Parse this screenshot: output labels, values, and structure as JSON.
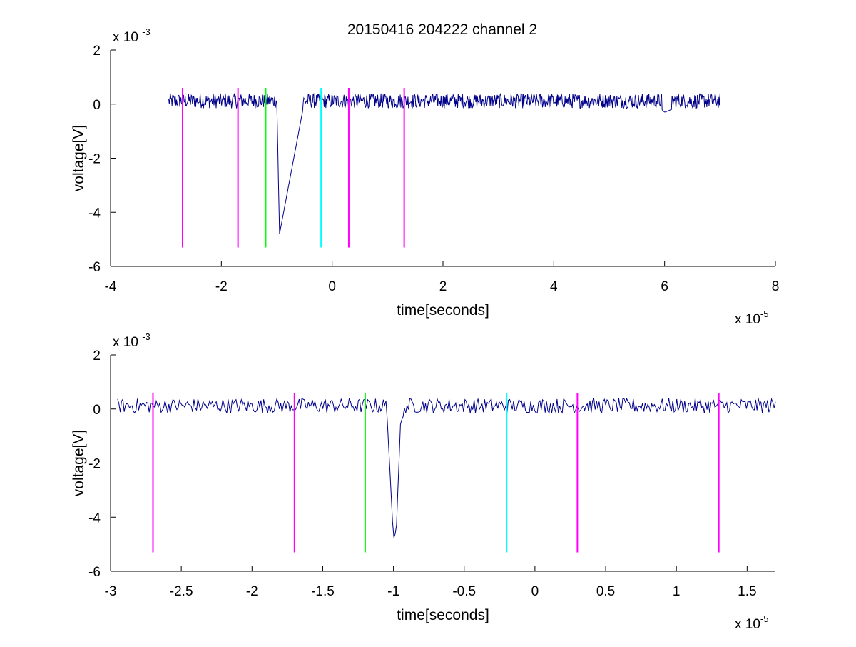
{
  "figure": {
    "title": "20150416 204222 channel 2"
  },
  "colors": {
    "signal": "#00008b",
    "magenta": "#ff00ff",
    "green": "#00ff00",
    "cyan": "#00ffff",
    "axes": "#000000"
  },
  "chart_data": [
    {
      "type": "line",
      "title": "20150416 204222 channel 2",
      "xlabel": "time[seconds]",
      "ylabel": "voltage[V]",
      "x_exponent_label": "x 10",
      "x_exponent": "-5",
      "y_exponent_label": "x 10",
      "y_exponent": "-3",
      "xlim": [
        -4,
        8
      ],
      "ylim": [
        -6,
        2
      ],
      "xticks": [
        -4,
        -2,
        0,
        2,
        4,
        6,
        8
      ],
      "xtick_labels": [
        "-4",
        "-2",
        "0",
        "2",
        "4",
        "6",
        "8"
      ],
      "yticks": [
        -6,
        -4,
        -2,
        0,
        2
      ],
      "ytick_labels": [
        "-6",
        "-4",
        "-2",
        "0",
        "2"
      ],
      "grid": false,
      "series": [
        {
          "x": [
            -2.95,
            -2.5,
            -2.0,
            -1.5,
            -1.0,
            -0.95,
            -0.5,
            0,
            1,
            2,
            3,
            4,
            5,
            5.8,
            6.0,
            6.5,
            7.0
          ],
          "y": [
            0.2,
            0.1,
            0.0,
            0.2,
            0.2,
            -4.8,
            0.1,
            0.2,
            0.1,
            0.2,
            0.1,
            0.1,
            0.2,
            0.1,
            -0.3,
            0.1,
            0.2
          ]
        }
      ],
      "vlines": [
        {
          "x": -2.7,
          "color": "magenta",
          "y0": -5.3,
          "y1": 0.6
        },
        {
          "x": -1.7,
          "color": "magenta",
          "y0": -5.3,
          "y1": 0.6
        },
        {
          "x": -1.2,
          "color": "green",
          "y0": -5.3,
          "y1": 0.6
        },
        {
          "x": -0.2,
          "color": "cyan",
          "y0": -5.3,
          "y1": 0.6
        },
        {
          "x": 0.3,
          "color": "magenta",
          "y0": -5.3,
          "y1": 0.6
        },
        {
          "x": 1.3,
          "color": "magenta",
          "y0": -5.3,
          "y1": 0.6
        }
      ]
    },
    {
      "type": "line",
      "title": "",
      "xlabel": "time[seconds]",
      "ylabel": "voltage[V]",
      "x_exponent_label": "x 10",
      "x_exponent": "-5",
      "y_exponent_label": "x 10",
      "y_exponent": "-3",
      "xlim": [
        -3,
        1.7
      ],
      "ylim": [
        -6,
        2
      ],
      "xticks": [
        -3,
        -2.5,
        -2,
        -1.5,
        -1,
        -0.5,
        0,
        0.5,
        1,
        1.5
      ],
      "xtick_labels": [
        "-3",
        "-2.5",
        "-2",
        "-1.5",
        "-1",
        "-0.5",
        "0",
        "0.5",
        "1",
        "1.5"
      ],
      "yticks": [
        -6,
        -4,
        -2,
        0,
        2
      ],
      "ytick_labels": [
        "-6",
        "-4",
        "-2",
        "0",
        "2"
      ],
      "grid": false,
      "series": [
        {
          "x": [
            -2.95,
            -2.5,
            -2.0,
            -1.5,
            -1.05,
            -1.0,
            -0.98,
            -0.95,
            -0.9,
            -0.5,
            0,
            0.5,
            1.0,
            1.5,
            1.7
          ],
          "y": [
            0.2,
            0.1,
            0.1,
            0.2,
            0.2,
            -4.8,
            -4.5,
            -0.5,
            0.1,
            0.2,
            0.2,
            0.1,
            0.2,
            0.1,
            0.2
          ]
        }
      ],
      "vlines": [
        {
          "x": -2.7,
          "color": "magenta",
          "y0": -5.3,
          "y1": 0.6
        },
        {
          "x": -1.7,
          "color": "magenta",
          "y0": -5.3,
          "y1": 0.6
        },
        {
          "x": -1.2,
          "color": "green",
          "y0": -5.3,
          "y1": 0.6
        },
        {
          "x": -0.2,
          "color": "cyan",
          "y0": -5.3,
          "y1": 0.6
        },
        {
          "x": 0.3,
          "color": "magenta",
          "y0": -5.3,
          "y1": 0.6
        },
        {
          "x": 1.3,
          "color": "magenta",
          "y0": -5.3,
          "y1": 0.6
        }
      ]
    }
  ]
}
